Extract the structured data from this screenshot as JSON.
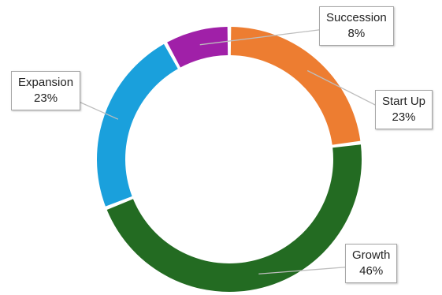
{
  "chart_data": {
    "type": "donut",
    "title": "",
    "slices": [
      {
        "label": "Start Up",
        "value": 23,
        "value_text": "23%",
        "color": "#ED7D31"
      },
      {
        "label": "Growth",
        "value": 46,
        "value_text": "46%",
        "color": "#236B22"
      },
      {
        "label": "Expansion",
        "value": 23,
        "value_text": "23%",
        "color": "#1AA0DC"
      },
      {
        "label": "Succession",
        "value": 8,
        "value_text": "8%",
        "color": "#A020A8"
      }
    ],
    "start_angle_deg": 0,
    "direction": "clockwise",
    "legend": "none"
  }
}
